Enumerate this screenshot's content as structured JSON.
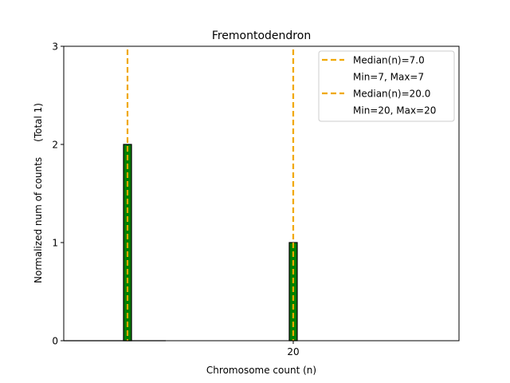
{
  "chart_data": {
    "type": "bar",
    "title": "Fremontodendron",
    "xlabel": "Chromosome count (n)",
    "ylabel": "Normalized num of counts     (Total 1)",
    "xlim": [
      2,
      33
    ],
    "ylim": [
      0,
      3
    ],
    "x_ticks": [
      20
    ],
    "x_tick_labels": [
      "20"
    ],
    "y_ticks": [
      0,
      1,
      2,
      3
    ],
    "y_tick_labels": [
      "0",
      "1",
      "2",
      "3"
    ],
    "bars": [
      {
        "x": 7,
        "value": 2
      },
      {
        "x": 20,
        "value": 1
      }
    ],
    "bar_color": "#008000",
    "bar_edge_color": "#000000",
    "baseline_segment": [
      2,
      10
    ],
    "reference_lines": [
      {
        "x": 7,
        "color": "#f0a800",
        "style": "dashed",
        "legend": "Median(n)=7.0",
        "note": "Min=7, Max=7"
      },
      {
        "x": 20,
        "color": "#f0a800",
        "style": "dashed",
        "legend": "Median(n)=20.0",
        "note": "Min=20, Max=20"
      }
    ],
    "legend_position": "top-right",
    "grid": false
  }
}
